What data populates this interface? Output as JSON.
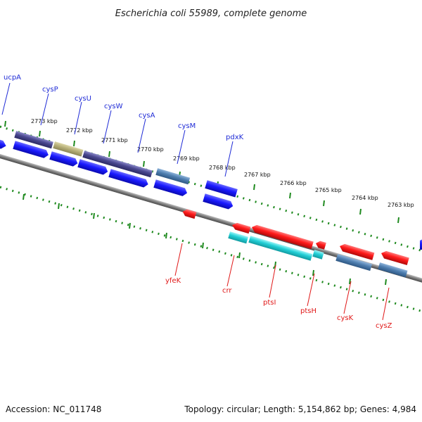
{
  "title": "Escherichia coli 55989, complete genome",
  "footer": {
    "accession": "Accession: NC_011748",
    "summary": "Topology: circular; Length: 5,154,862 bp; Genes: 4,984"
  },
  "colors": {
    "backbone": "#808080",
    "tick_dots": "#1f8a1f",
    "forward_cds": "#1a1aff",
    "reverse_cds": "#ff1a1a",
    "forward_label": "#1f2bd6",
    "reverse_label": "#e01818",
    "operon_purple": "#4a4890",
    "operon_khaki": "#b7b07a",
    "steel_blue": "#4f7fb0",
    "cyan": "#22cfd6"
  },
  "ticks": [
    "2773 kbp",
    "2772 kbp",
    "2771 kbp",
    "2770 kbp",
    "2769 kbp",
    "2768 kbp",
    "2767 kbp",
    "2766 kbp",
    "2765 kbp",
    "2764 kbp",
    "2763 kbp"
  ],
  "forward_genes": [
    "ucpA",
    "cysP",
    "cysU",
    "cysW",
    "cysA",
    "cysM",
    "pdxK"
  ],
  "reverse_genes": [
    "yfeK",
    "crr",
    "ptsI",
    "ptsH",
    "cysK",
    "cysZ"
  ]
}
